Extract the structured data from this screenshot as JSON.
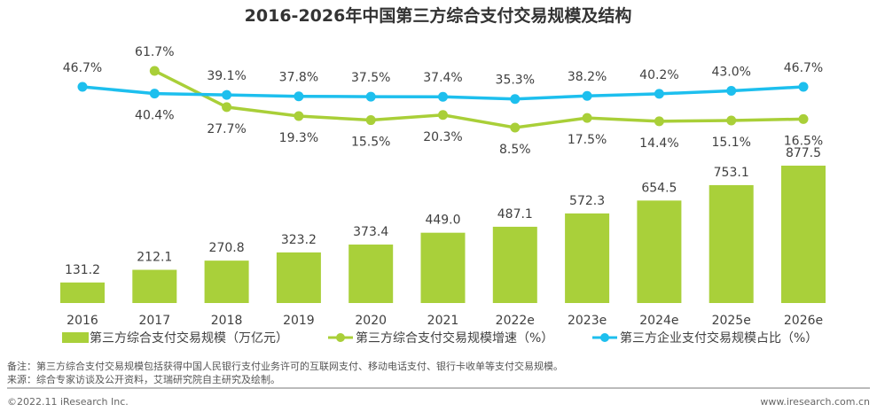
{
  "chart_data": {
    "type": "bar+line",
    "title": "2016-2026年中国第三方综合支付交易规模及结构",
    "categories": [
      "2016",
      "2017",
      "2018",
      "2019",
      "2020",
      "2021",
      "2022e",
      "2023e",
      "2024e",
      "2025e",
      "2026e"
    ],
    "series": [
      {
        "name": "第三方综合支付交易规模（万亿元）",
        "type": "bar",
        "color": "#a9d03a",
        "values": [
          131.2,
          212.1,
          270.8,
          323.2,
          373.4,
          449.0,
          487.1,
          572.3,
          654.5,
          753.1,
          877.5
        ]
      },
      {
        "name": "第三方综合支付交易规模增速（%）",
        "type": "line",
        "color": "#a9cf38",
        "values": [
          null,
          61.7,
          27.7,
          19.3,
          15.5,
          20.3,
          8.5,
          17.5,
          14.4,
          15.1,
          16.5
        ]
      },
      {
        "name": "第三方企业支付交易规模占比（%）",
        "type": "line",
        "color": "#1dbfee",
        "values": [
          46.7,
          40.4,
          39.1,
          37.8,
          37.5,
          37.4,
          35.3,
          38.2,
          40.2,
          43.0,
          46.7
        ]
      }
    ],
    "grid": false,
    "legend": "bottom"
  },
  "notes": {
    "remark": "备注：第三方综合支付交易规模包括获得中国人民银行支付业务许可的互联网支付、移动电话支付、银行卡收单等支付交易规模。",
    "source": "来源：综合专家访谈及公开资料，艾瑞研究院自主研究及绘制。"
  },
  "footer": {
    "copyright": "©2022.11 iResearch Inc.",
    "website": "www.iresearch.com.cn"
  }
}
